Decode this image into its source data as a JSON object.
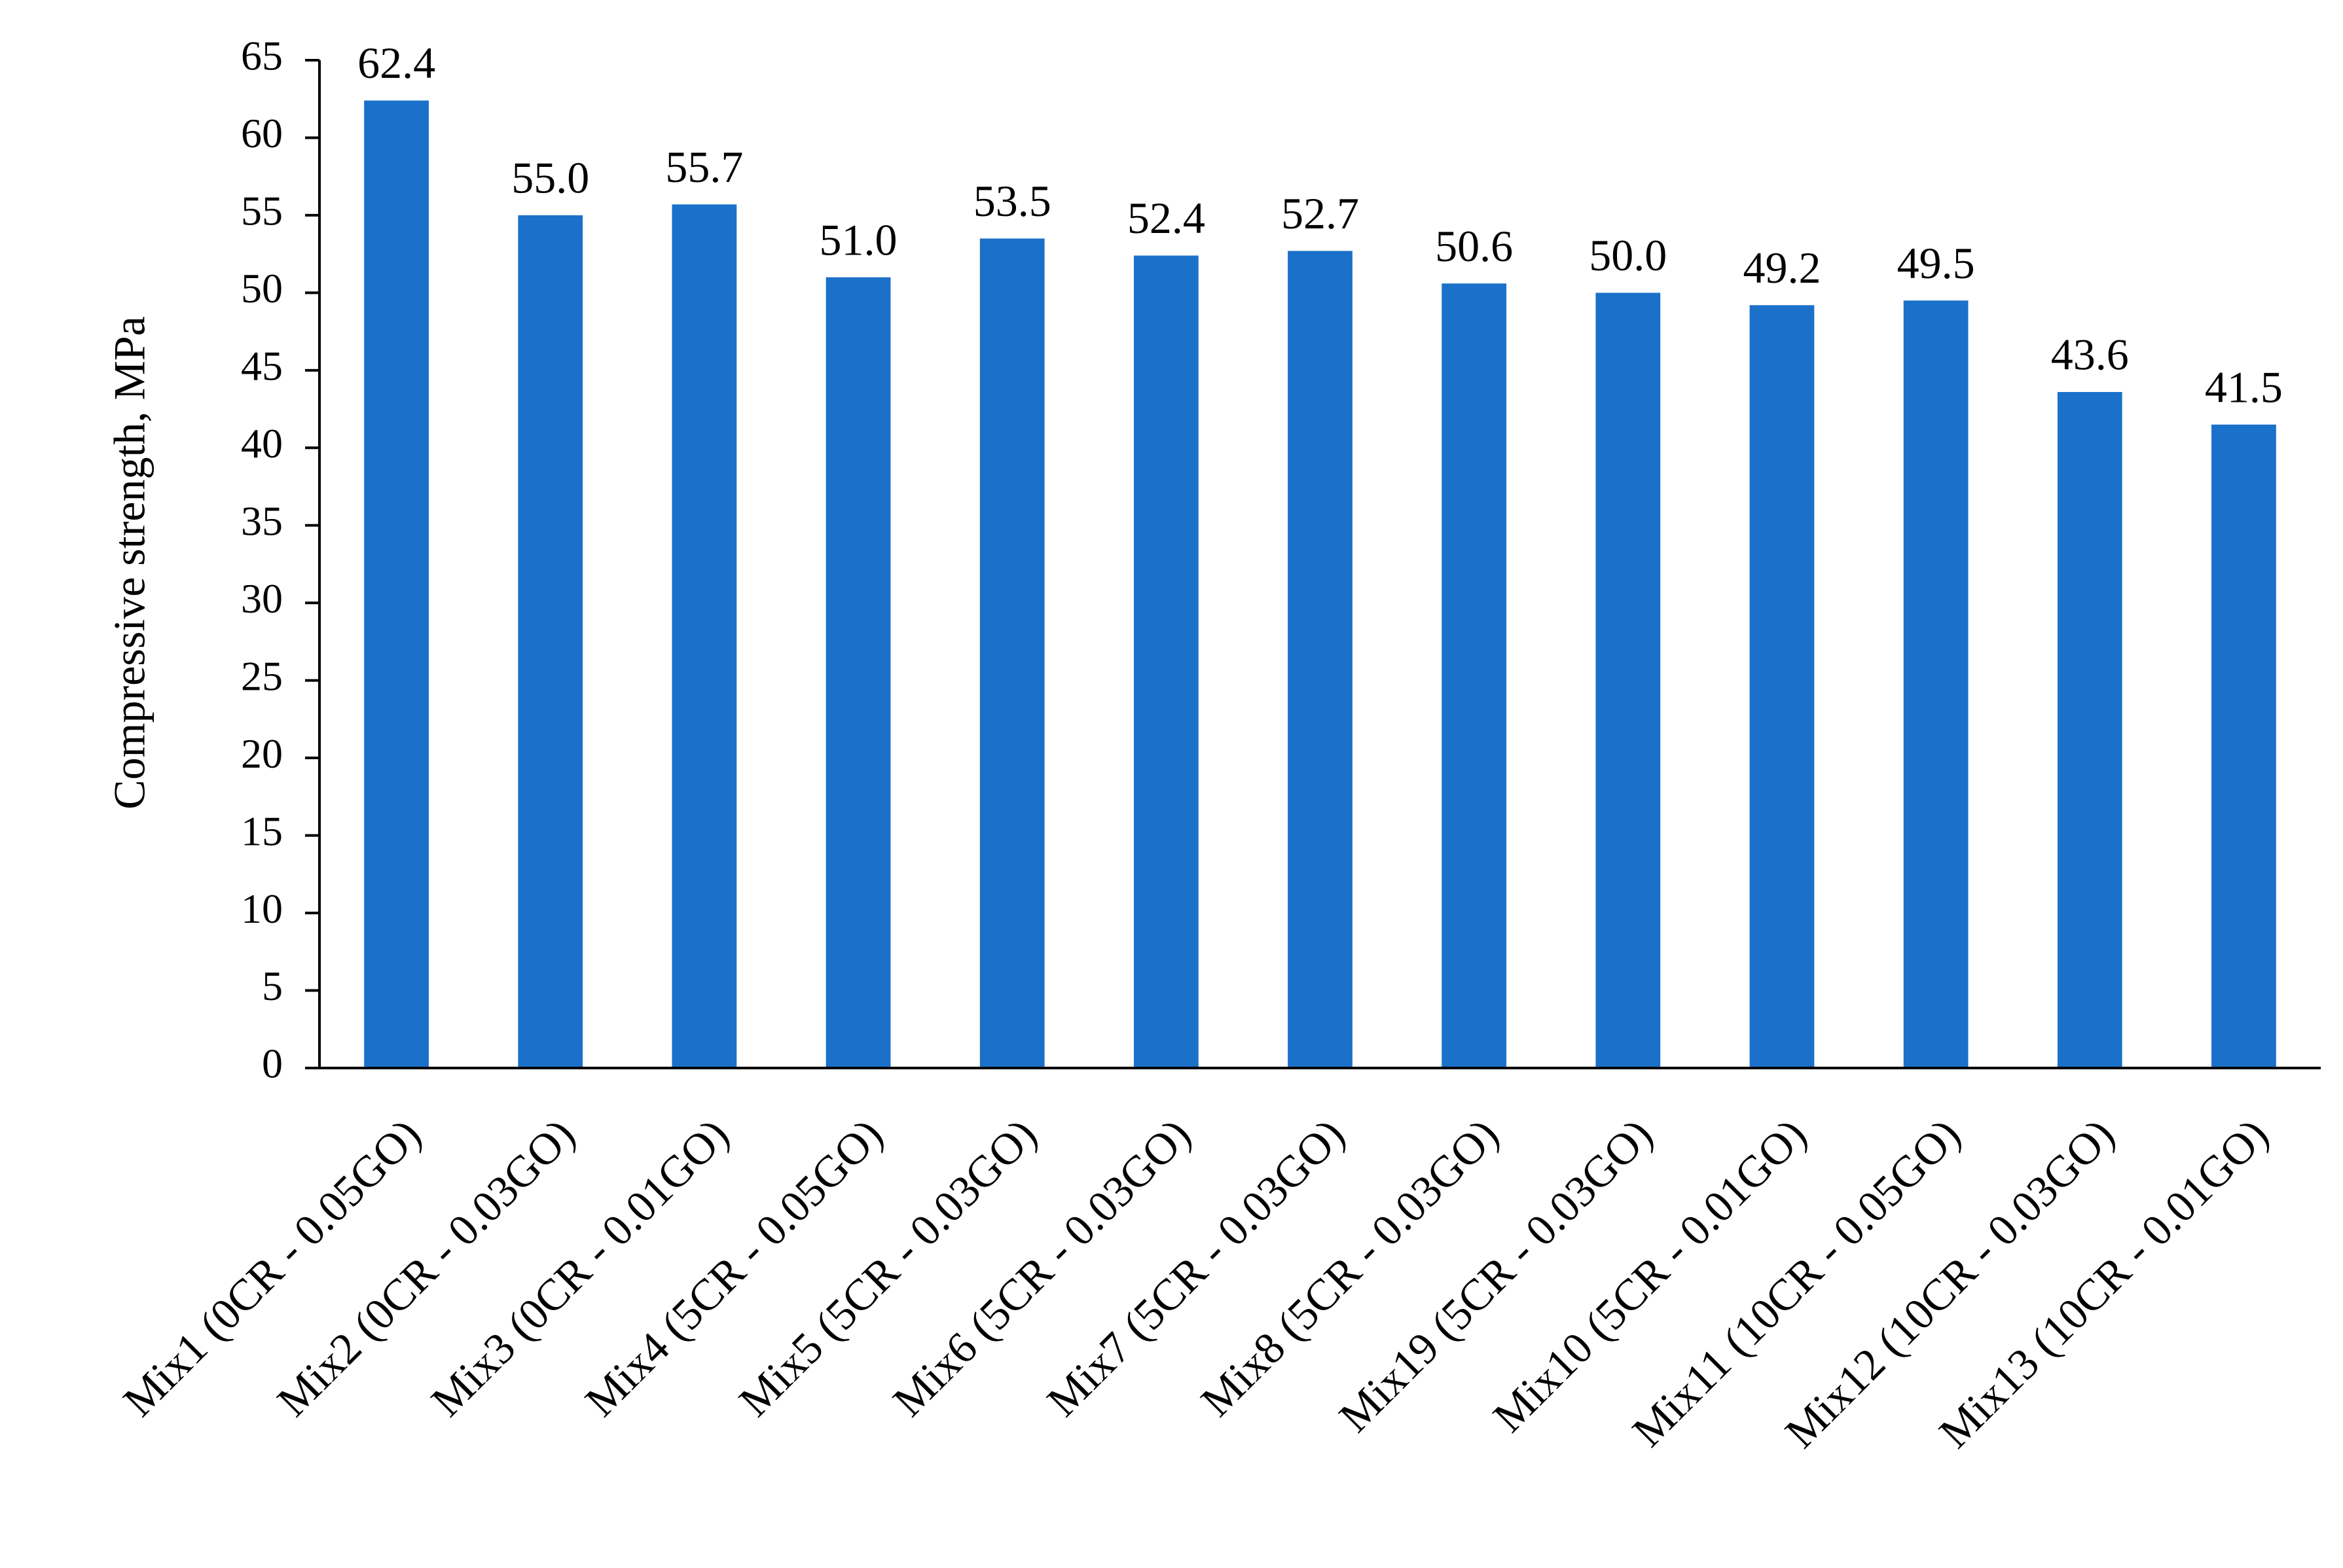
{
  "chart_data": {
    "type": "bar",
    "y_axis_label": "Compressive strength, MPa",
    "categories": [
      "Mix1 (0CR - 0.05GO)",
      "Mix2 (0CR - 0.03GO)",
      "Mix3 (0CR - 0.01GO)",
      "Mix4 (5CR - 0.05GO)",
      "Mix5 (5CR - 0.03GO)",
      "Mix6 (5CR - 0.03GO)",
      "Mix7 (5CR - 0.03GO)",
      "Mix8 (5CR - 0.03GO)",
      "Mix19 (5CR - 0.03GO)",
      "Mix10 (5CR - 0.01GO)",
      "Mix11 (10CR - 0.05GO)",
      "Mix12 (10CR - 0.03GO)",
      "Mix13 (10CR - 0.01GO)"
    ],
    "values": [
      62.4,
      55.0,
      55.7,
      51.0,
      53.5,
      52.4,
      52.7,
      50.6,
      50.0,
      49.2,
      49.5,
      43.6,
      41.5
    ],
    "value_labels": [
      "62.4",
      "55.0",
      "55.7",
      "51.0",
      "53.5",
      "52.4",
      "52.7",
      "50.6",
      "50.0",
      "49.2",
      "49.5",
      "43.6",
      "41.5"
    ],
    "color": "#1b71c9",
    "ylim": [
      0,
      65
    ],
    "yticks": [
      0,
      5,
      10,
      15,
      20,
      25,
      30,
      35,
      40,
      45,
      50,
      55,
      60,
      65
    ],
    "grid": false
  }
}
